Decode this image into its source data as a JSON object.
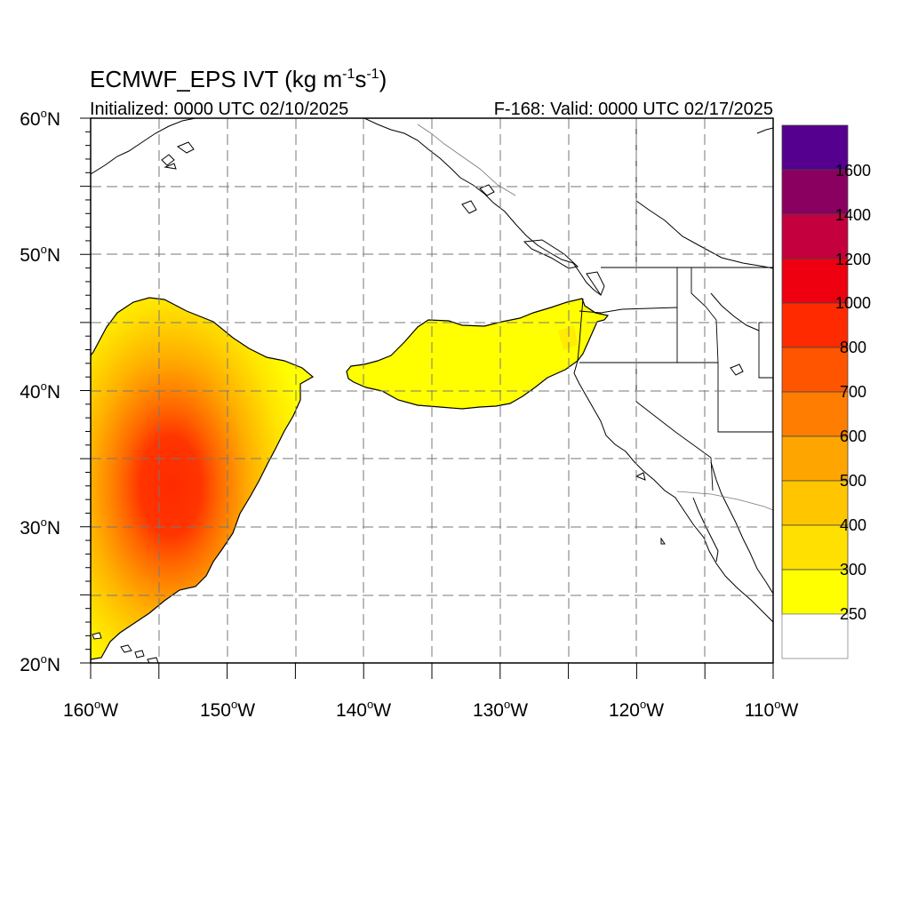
{
  "title": {
    "main": "ECMWF_EPS IVT (kg m",
    "exp1": "-1",
    "mid": "s",
    "exp2": "-1",
    "close": ")"
  },
  "subtitle_left": "Initialized: 0000 UTC 02/10/2025",
  "subtitle_right": "F-168: Valid: 0000 UTC 02/17/2025",
  "map": {
    "lon_range": [
      -160,
      -110
    ],
    "lat_range": [
      20,
      60
    ],
    "lat_labels": [
      {
        "num": "60",
        "deg": "o",
        "hem": "N",
        "value": 60
      },
      {
        "num": "50",
        "deg": "o",
        "hem": "N",
        "value": 50
      },
      {
        "num": "40",
        "deg": "o",
        "hem": "N",
        "value": 40
      },
      {
        "num": "30",
        "deg": "o",
        "hem": "N",
        "value": 30
      },
      {
        "num": "20",
        "deg": "o",
        "hem": "N",
        "value": 20
      }
    ],
    "lon_labels": [
      {
        "num": "160",
        "deg": "o",
        "hem": "W",
        "value": -160
      },
      {
        "num": "150",
        "deg": "o",
        "hem": "W",
        "value": -150
      },
      {
        "num": "140",
        "deg": "o",
        "hem": "W",
        "value": -140
      },
      {
        "num": "130",
        "deg": "o",
        "hem": "W",
        "value": -130
      },
      {
        "num": "120",
        "deg": "o",
        "hem": "W",
        "value": -120
      },
      {
        "num": "110",
        "deg": "o",
        "hem": "W",
        "value": -110
      }
    ]
  },
  "colorbar": {
    "labels": [
      "1600",
      "1400",
      "1200",
      "1000",
      "800",
      "700",
      "600",
      "500",
      "400",
      "300",
      "250"
    ],
    "colors": [
      "#55008f",
      "#8a0060",
      "#c4003e",
      "#ee0011",
      "#ff2a00",
      "#ff5500",
      "#ff7d00",
      "#ffa500",
      "#ffc600",
      "#ffe000",
      "#ffff00",
      "#ffffff"
    ]
  }
}
